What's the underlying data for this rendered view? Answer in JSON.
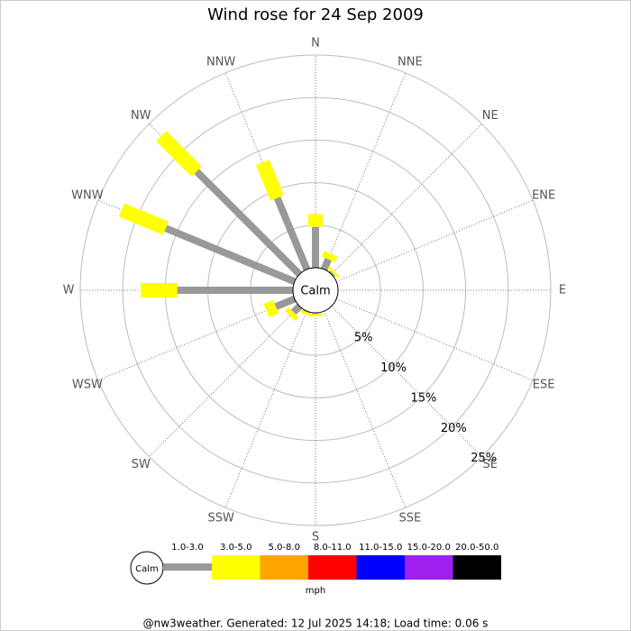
{
  "chart_data": {
    "type": "windrose",
    "title": "Wind rose for 24 Sep 2009",
    "categories": [
      "N",
      "NNE",
      "NE",
      "ENE",
      "E",
      "ESE",
      "SE",
      "SSE",
      "S",
      "SSW",
      "SW",
      "WSW",
      "W",
      "WNW",
      "NW",
      "NNW"
    ],
    "series": [
      {
        "name": "1.0-3.0",
        "color": "#999999",
        "values": [
          4.8,
          1.3,
          0.2,
          0,
          0,
          0,
          0,
          0,
          0.1,
          0.1,
          1.0,
          2.4,
          13.6,
          16.4,
          17.1,
          9.1
        ]
      },
      {
        "name": "3.0-5.0",
        "color": "#ffff00",
        "values": [
          1.5,
          0.7,
          0.3,
          0,
          0,
          0,
          0,
          0,
          0.3,
          0.3,
          0.6,
          1.2,
          4.3,
          5.6,
          5.9,
          4.5
        ]
      },
      {
        "name": "5.0-8.0",
        "color": "#ffa500",
        "values": [
          0,
          0,
          0,
          0,
          0,
          0,
          0,
          0,
          0,
          0,
          0,
          0,
          0,
          0,
          0,
          0
        ]
      },
      {
        "name": "8.0-11.0",
        "color": "#ff0000",
        "values": [
          0,
          0,
          0,
          0,
          0,
          0,
          0,
          0,
          0,
          0,
          0,
          0,
          0,
          0,
          0,
          0
        ]
      },
      {
        "name": "11.0-15.0",
        "color": "#0000ff",
        "values": [
          0,
          0,
          0,
          0,
          0,
          0,
          0,
          0,
          0,
          0,
          0,
          0,
          0,
          0,
          0,
          0
        ]
      },
      {
        "name": "15.0-20.0",
        "color": "#a020f0",
        "values": [
          0,
          0,
          0,
          0,
          0,
          0,
          0,
          0,
          0,
          0,
          0,
          0,
          0,
          0,
          0,
          0
        ]
      },
      {
        "name": "20.0-50.0",
        "color": "#000000",
        "values": [
          0,
          0,
          0,
          0,
          0,
          0,
          0,
          0,
          0,
          0,
          0,
          0,
          0,
          0,
          0,
          0
        ]
      }
    ],
    "ylim": [
      0,
      25
    ],
    "yticks": [
      {
        "value": 5,
        "label": "5%"
      },
      {
        "value": 10,
        "label": "10%"
      },
      {
        "value": 15,
        "label": "15%"
      },
      {
        "value": 20,
        "label": "20%"
      },
      {
        "value": 25,
        "label": "25%"
      }
    ],
    "calm_label": "Calm",
    "legend_title": "mph",
    "footer": "@nw3weather. Generated: 12 Jul 2025 14:18; Load time: 0.06 s"
  }
}
